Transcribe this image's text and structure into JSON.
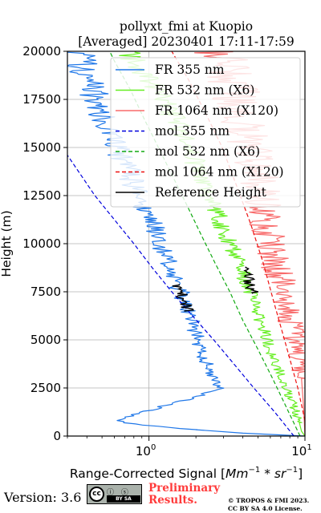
{
  "title_line1": "pollyxt_fmi at Kuopio",
  "title_line2": "[Averaged] 20230401 17:11-17:59",
  "footer": {
    "version": "Version: 3.6",
    "prelim_line1": "Preliminary",
    "prelim_line2": "Results.",
    "copyright_line1": "© TROPOS & FMI 2023.",
    "copyright_line2": "CC BY SA 4.0 License.",
    "logo_cc": "cc",
    "logo_icons": "ⓘ ⓢ",
    "logo_strip": "BY  SA"
  },
  "chart_data": {
    "type": "line",
    "xlabel_prefix": "Range-Corrected Signal [",
    "xlabel_unit": "Mm",
    "xlabel_exp1": "−1",
    "xlabel_mid": " * ",
    "xlabel_sr": "sr",
    "xlabel_exp2": "−1",
    "xlabel_suffix": "]",
    "ylabel": "Height (m)",
    "x_scale": "log",
    "xlim": [
      0.3,
      10
    ],
    "ylim": [
      0,
      20000
    ],
    "x_ticks": [
      {
        "base": "10",
        "exp": "0",
        "value": 1
      },
      {
        "base": "10",
        "exp": "1",
        "value": 10
      }
    ],
    "y_ticks": [
      0,
      2500,
      5000,
      7500,
      10000,
      12500,
      15000,
      17500,
      20000
    ],
    "grid": true,
    "legend_position": "top-right",
    "series": [
      {
        "name": "FR 355 nm",
        "color": "#1f77e8",
        "style": "solid",
        "width": 1.2,
        "points": [
          [
            10,
            0
          ],
          [
            4,
            150
          ],
          [
            2,
            330
          ],
          [
            0.9,
            560
          ],
          [
            0.6,
            800
          ],
          [
            2.8,
            2400
          ],
          [
            2.2,
            4300
          ],
          [
            1.95,
            5600
          ],
          [
            1.65,
            7200
          ],
          [
            1.35,
            8800
          ],
          [
            1.2,
            10000
          ],
          [
            1.05,
            11000
          ],
          [
            0.92,
            12000
          ],
          [
            0.8,
            13000
          ],
          [
            0.72,
            14000
          ],
          [
            0.62,
            15000
          ],
          [
            0.55,
            16000
          ],
          [
            0.48,
            17000
          ],
          [
            0.43,
            18000
          ],
          [
            0.38,
            19000
          ],
          [
            0.35,
            20000
          ]
        ]
      },
      {
        "name": "FR 532 nm (X6)",
        "color": "#66ee22",
        "style": "solid",
        "width": 1.2,
        "points": [
          [
            10,
            0
          ],
          [
            9.5,
            250
          ],
          [
            9.2,
            700
          ],
          [
            8.5,
            1500
          ],
          [
            7.2,
            3000
          ],
          [
            6,
            4500
          ],
          [
            5.2,
            6000
          ],
          [
            4.4,
            7500
          ],
          [
            3.8,
            9000
          ],
          [
            3.1,
            10500
          ],
          [
            2.6,
            12000
          ],
          [
            2.15,
            13500
          ],
          [
            1.8,
            15000
          ],
          [
            1.45,
            16500
          ],
          [
            1.15,
            17800
          ],
          [
            0.9,
            19000
          ],
          [
            0.72,
            20000
          ]
        ]
      },
      {
        "name": "FR 1064 nm (X120)",
        "color": "#f86a6a",
        "style": "solid",
        "width": 1.2,
        "points": [
          [
            10,
            50
          ],
          [
            9.8,
            1500
          ],
          [
            9.5,
            3000
          ],
          [
            9,
            4500
          ],
          [
            8.2,
            6000
          ],
          [
            7.5,
            7500
          ],
          [
            6.5,
            9000
          ],
          [
            6,
            10500
          ],
          [
            5.5,
            12000
          ],
          [
            5,
            13500
          ],
          [
            4.5,
            15000
          ],
          [
            4,
            16500
          ],
          [
            3.5,
            18000
          ],
          [
            3.1,
            19200
          ],
          [
            2.8,
            20000
          ]
        ]
      },
      {
        "name": "mol 355 nm",
        "color": "#0000dd",
        "style": "dashed",
        "width": 1.2,
        "points": [
          [
            8.5,
            0
          ],
          [
            6.4,
            1250
          ],
          [
            4.7,
            2500
          ],
          [
            3.5,
            3750
          ],
          [
            2.6,
            5000
          ],
          [
            1.9,
            6250
          ],
          [
            1.4,
            7500
          ],
          [
            1.05,
            8750
          ],
          [
            0.8,
            10000
          ],
          [
            0.6,
            11250
          ],
          [
            0.45,
            12500
          ],
          [
            0.3,
            14600
          ]
        ]
      },
      {
        "name": "mol 532 nm (X6)",
        "color": "#11aa11",
        "style": "dashed",
        "width": 1.2,
        "points": [
          [
            9.3,
            0
          ],
          [
            7.6,
            1500
          ],
          [
            6.2,
            3000
          ],
          [
            5,
            4500
          ],
          [
            4,
            6000
          ],
          [
            3.3,
            7500
          ],
          [
            2.65,
            9000
          ],
          [
            2.15,
            10500
          ],
          [
            1.75,
            12000
          ],
          [
            1.42,
            13500
          ],
          [
            1.15,
            15000
          ],
          [
            0.93,
            16500
          ],
          [
            0.76,
            18000
          ],
          [
            0.6,
            19500
          ],
          [
            0.56,
            20000
          ]
        ]
      },
      {
        "name": "mol 1064 nm (X120)",
        "color": "#ee1111",
        "style": "dashed",
        "width": 1.2,
        "points": [
          [
            10,
            800
          ],
          [
            9,
            2500
          ],
          [
            7.7,
            4500
          ],
          [
            6.3,
            7000
          ],
          [
            5.4,
            9000
          ],
          [
            4.5,
            11000
          ],
          [
            3.65,
            13000
          ],
          [
            2.95,
            15000
          ],
          [
            2.4,
            16500
          ],
          [
            1.8,
            18500
          ],
          [
            1.4,
            20000
          ]
        ]
      },
      {
        "name": "Reference Height",
        "color": "#000000",
        "style": "solid",
        "width": 1.4,
        "points": [
          [
            1.7,
            7900
          ],
          [
            2.1,
            7000
          ],
          [
            1.9,
            6500
          ]
        ]
      }
    ]
  }
}
